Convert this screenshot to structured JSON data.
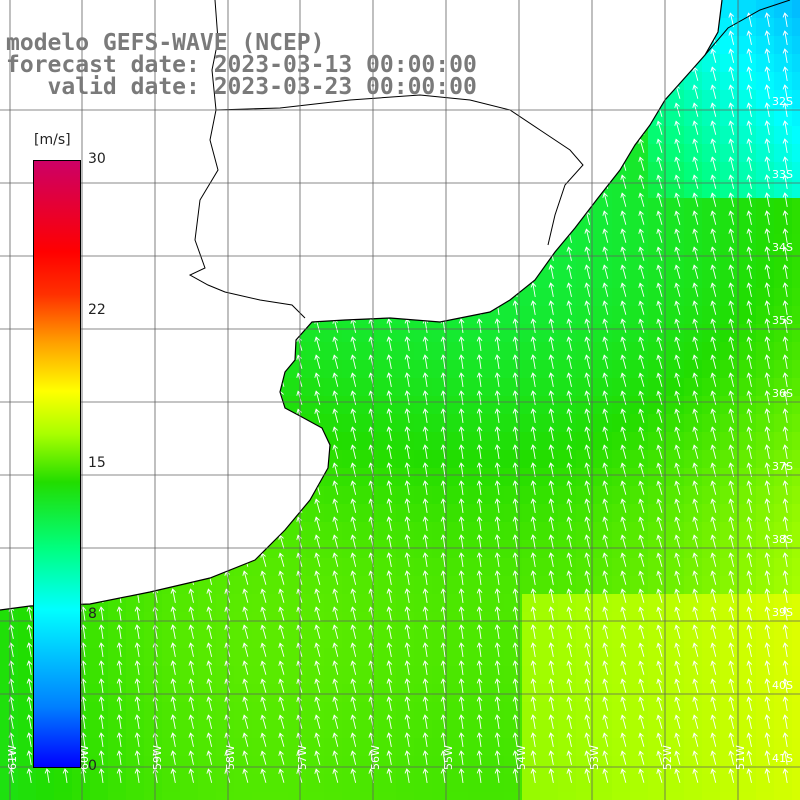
{
  "title_lines": {
    "model": "modelo GEFS-WAVE (NCEP)",
    "forecast": "forecast date: 2023-03-13 00:00:00",
    "valid": "   valid date: 2023-03-23 00:00:00"
  },
  "colorbar": {
    "unit": "[m/s]",
    "ticks": [
      "30",
      "22",
      "15",
      "8",
      "0"
    ],
    "colors": [
      "#0000ff",
      "#0080ff",
      "#00ffff",
      "#00ff80",
      "#22dd00",
      "#aaff00",
      "#ffff00",
      "#ffa000",
      "#ff0000",
      "#cc0066"
    ]
  },
  "lat_labels": [
    "32S",
    "33S",
    "34S",
    "35S",
    "36S",
    "37S",
    "38S",
    "39S",
    "40S",
    "41S"
  ],
  "lon_labels": [
    "61W",
    "60W",
    "59W",
    "58W",
    "57W",
    "56W",
    "55W",
    "54W",
    "53W",
    "52W",
    "51W"
  ],
  "map": {
    "field": "wind speed",
    "units": "m/s",
    "land_color": "#ffffff",
    "coast_color": "#000000",
    "grid_color": "#666666",
    "arrow_color": "#ffffff"
  }
}
